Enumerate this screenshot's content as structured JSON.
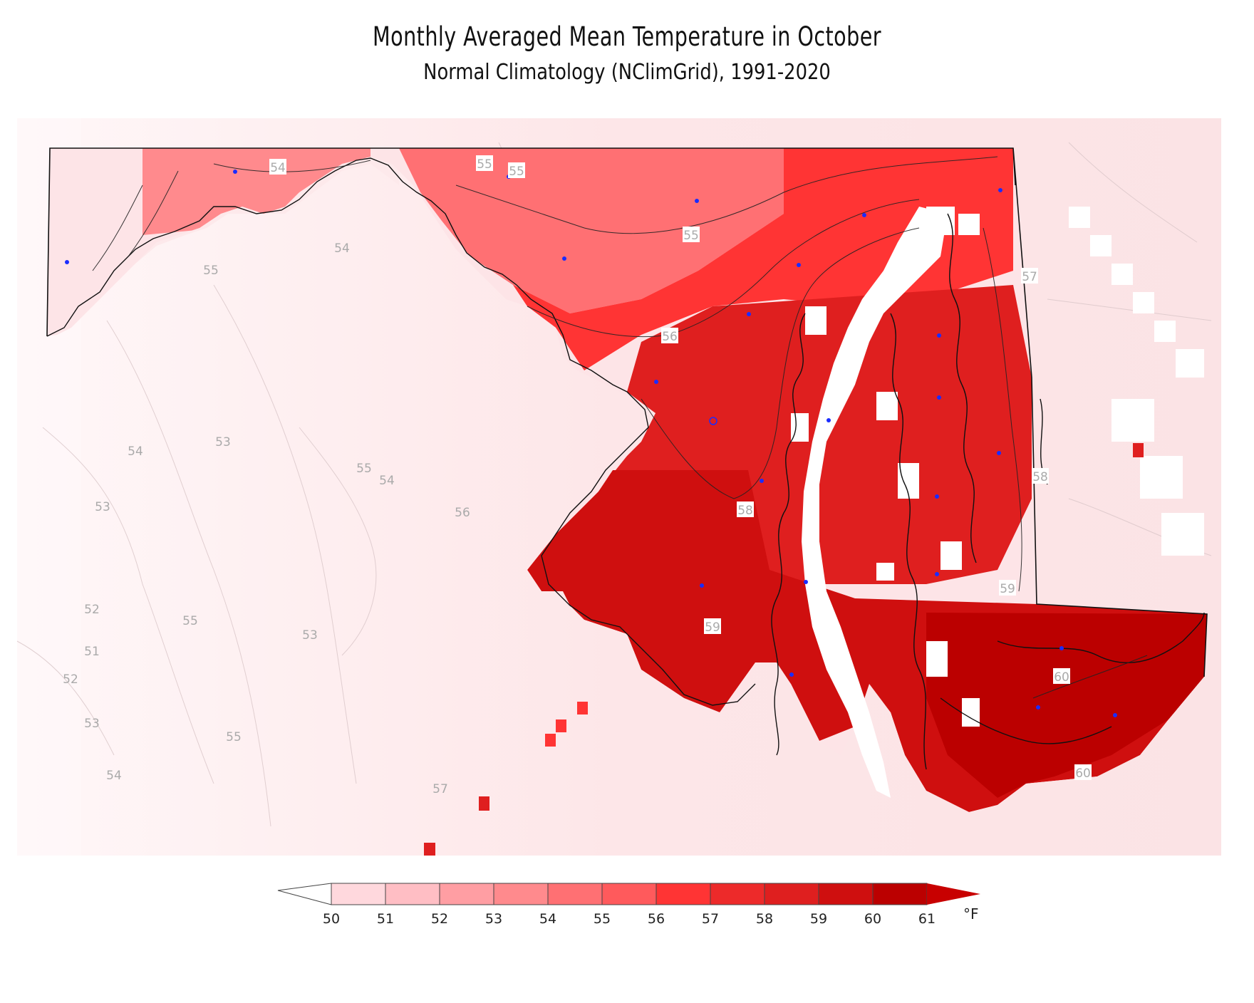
{
  "title": "Monthly Averaged Mean Temperature in October",
  "subtitle": "Normal Climatology (NClimGrid), 1991-2020",
  "legend": {
    "unit": "°F",
    "ticks": [
      "50",
      "51",
      "52",
      "53",
      "54",
      "55",
      "56",
      "57",
      "58",
      "59",
      "60",
      "61"
    ],
    "bins": [
      {
        "range": "below 50",
        "color": "#ffffff"
      },
      {
        "range": "50-51",
        "color": "#ffd8dd"
      },
      {
        "range": "51-52",
        "color": "#ffbec4"
      },
      {
        "range": "52-53",
        "color": "#ff9ea3"
      },
      {
        "range": "53-54",
        "color": "#ff8a8d"
      },
      {
        "range": "54-55",
        "color": "#ff7073"
      },
      {
        "range": "55-56",
        "color": "#ff5a5c"
      },
      {
        "range": "56-57",
        "color": "#ff3434"
      },
      {
        "range": "57-58",
        "color": "#ed2a2a"
      },
      {
        "range": "58-59",
        "color": "#df1f1f"
      },
      {
        "range": "59-60",
        "color": "#cf0f0f"
      },
      {
        "range": "60-61",
        "color": "#bb0000"
      },
      {
        "range": "above 61",
        "color": "#c80000"
      }
    ]
  },
  "contour_labels": [
    "54",
    "55",
    "55",
    "55",
    "56",
    "57",
    "58",
    "58",
    "59",
    "59",
    "60",
    "60",
    "54",
    "55",
    "54",
    "53",
    "53",
    "55",
    "54",
    "56",
    "52",
    "55",
    "51",
    "53",
    "52",
    "53",
    "55",
    "54",
    "57"
  ],
  "colors": {
    "background": "#ffffff",
    "outside_state": "#fbe4e6",
    "station_dot": "#1a2cff"
  }
}
